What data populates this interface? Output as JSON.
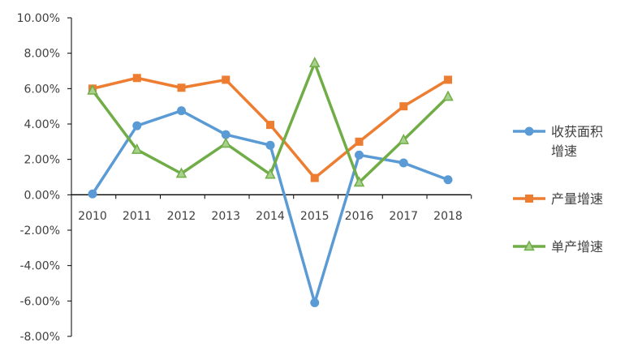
{
  "chart_data": {
    "type": "line",
    "title": "",
    "xlabel": "",
    "ylabel": "",
    "categories": [
      "2010",
      "2011",
      "2012",
      "2013",
      "2014",
      "2015",
      "2016",
      "2017",
      "2018"
    ],
    "ylim": [
      -0.08,
      0.1
    ],
    "yticks": [
      -0.08,
      -0.06,
      -0.04,
      -0.02,
      0.0,
      0.02,
      0.04,
      0.06,
      0.08,
      0.1
    ],
    "ytick_labels": [
      "-8.00%",
      "-6.00%",
      "-4.00%",
      "-2.00%",
      "0.00%",
      "2.00%",
      "4.00%",
      "6.00%",
      "8.00%",
      "10.00%"
    ],
    "grid": false,
    "legend_position": "right",
    "series": [
      {
        "name_lines": [
          "收获面积",
          "增速"
        ],
        "color": "#5B9BD5",
        "marker": "circle",
        "values": [
          0.0005,
          0.039,
          0.0475,
          0.034,
          0.028,
          -0.061,
          0.0225,
          0.018,
          0.0085
        ]
      },
      {
        "name_lines": [
          "产量增速"
        ],
        "color": "#ED7D31",
        "marker": "square",
        "values": [
          0.06,
          0.066,
          0.0605,
          0.065,
          0.0395,
          0.0095,
          0.03,
          0.05,
          0.065
        ]
      },
      {
        "name_lines": [
          "单产增速"
        ],
        "color": "#70AD47",
        "marker": "triangle",
        "values": [
          0.059,
          0.0255,
          0.012,
          0.029,
          0.0115,
          0.0745,
          0.007,
          0.031,
          0.0555
        ]
      }
    ]
  }
}
